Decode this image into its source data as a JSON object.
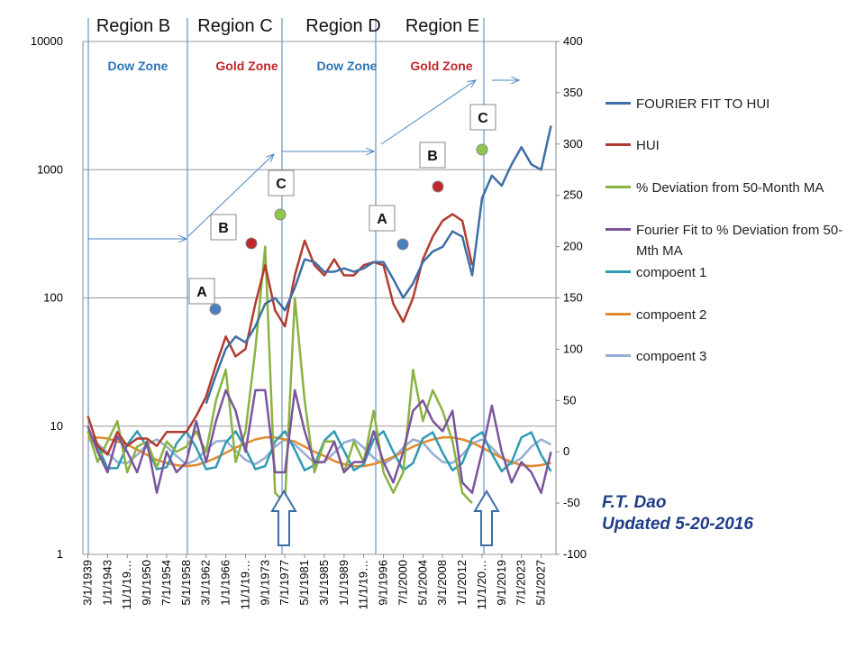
{
  "chart_data": {
    "type": "line",
    "categories": [
      "3/1/1939",
      null,
      "1/1/1943",
      null,
      "11/1/19…",
      null,
      "9/1/1950",
      null,
      "7/1/1954",
      null,
      "5/1/1958",
      null,
      "3/1/1962",
      null,
      "1/1/1966",
      null,
      "11/1/19…",
      null,
      "9/1/1973",
      null,
      "7/1/1977",
      null,
      "5/1/1981",
      null,
      "3/1/1985",
      null,
      "1/1/1989",
      null,
      "11/1/19…",
      null,
      "9/1/1996",
      null,
      "7/1/2000",
      null,
      "5/1/2004",
      null,
      "3/1/2008",
      null,
      "1/1/2012",
      null,
      "11/1/20…",
      null,
      "9/1/2019",
      null,
      "7/1/2023",
      null,
      "5/1/2027",
      null
    ],
    "ylim": [
      1,
      10000
    ],
    "yticks": [
      1,
      10,
      100,
      1000,
      10000
    ],
    "log_y": true,
    "grid": true,
    "y2lim": [
      -100,
      400
    ],
    "y2ticks": [
      -100,
      -50,
      0,
      50,
      100,
      150,
      200,
      250,
      300,
      350,
      400
    ],
    "legend": "right",
    "series": [
      {
        "name": "FOURIER FIT TO HUI",
        "color": "#3d6fa6",
        "values": [
          null,
          null,
          null,
          null,
          null,
          null,
          null,
          null,
          null,
          null,
          null,
          null,
          15,
          25,
          40,
          50,
          45,
          60,
          90,
          100,
          80,
          120,
          200,
          190,
          160,
          160,
          170,
          160,
          170,
          190,
          190,
          140,
          100,
          130,
          190,
          230,
          250,
          330,
          300,
          150,
          600,
          900,
          750,
          1100,
          1500,
          1100,
          1000,
          2200
        ]
      },
      {
        "name": "HUI",
        "color": "#b13c30",
        "values": [
          12,
          7,
          6,
          9,
          7,
          8,
          8,
          7,
          9,
          9,
          9,
          12,
          17,
          30,
          50,
          35,
          40,
          90,
          180,
          80,
          60,
          150,
          280,
          180,
          150,
          200,
          150,
          150,
          180,
          190,
          180,
          90,
          65,
          100,
          200,
          300,
          400,
          450,
          400,
          180,
          null,
          null,
          null,
          null,
          null,
          null,
          null,
          null
        ]
      },
      {
        "name": "% Deviation from 50-Month MA",
        "color": "#8bb243",
        "axis": "y2",
        "values": [
          20,
          -10,
          10,
          30,
          -20,
          5,
          10,
          -15,
          10,
          0,
          5,
          20,
          0,
          50,
          80,
          -10,
          20,
          100,
          200,
          -40,
          -50,
          150,
          50,
          -20,
          10,
          10,
          -20,
          10,
          -10,
          40,
          -20,
          -40,
          -20,
          80,
          30,
          60,
          40,
          10,
          -40,
          -50,
          null,
          null,
          null,
          null,
          null,
          null,
          null,
          null
        ]
      },
      {
        "name": "Fourier Fit to % Deviation from 50-Mth MA",
        "color": "#7a559c",
        "axis": "y2",
        "values": [
          25,
          0,
          -20,
          15,
          0,
          -20,
          10,
          -40,
          0,
          -20,
          -10,
          30,
          -10,
          30,
          60,
          40,
          0,
          60,
          60,
          -20,
          -20,
          60,
          20,
          -10,
          -10,
          10,
          -20,
          -10,
          -10,
          20,
          -10,
          -30,
          0,
          40,
          50,
          30,
          20,
          40,
          -30,
          -40,
          0,
          45,
          0,
          -30,
          -10,
          -20,
          -40,
          0
        ]
      },
      {
        "name": "compoent 1",
        "color": "#2e9bb3",
        "axis": "y2",
        "values": [
          20,
          6,
          -16,
          -16,
          7,
          20,
          5,
          -17,
          -15,
          8,
          20,
          4,
          -17,
          -15,
          9,
          20,
          3,
          -17,
          -14,
          10,
          20,
          2,
          -18,
          -13,
          11,
          20,
          1,
          -18,
          -12,
          12,
          20,
          0,
          -18,
          -11,
          13,
          19,
          -1,
          -18,
          -11,
          13,
          19,
          -2,
          -19,
          -10,
          14,
          19,
          -3,
          -19
        ]
      },
      {
        "name": "compoent 2",
        "color": "#e4892c",
        "axis": "y2",
        "values": [
          13,
          14,
          13,
          10,
          7,
          2,
          -3,
          -8,
          -11,
          -13,
          -14,
          -13,
          -10,
          -6,
          -1,
          4,
          8,
          12,
          14,
          14,
          12,
          10,
          5,
          0,
          -4,
          -9,
          -12,
          -14,
          -14,
          -12,
          -9,
          -5,
          0,
          5,
          9,
          12,
          14,
          14,
          12,
          9,
          4,
          -1,
          -6,
          -10,
          -13,
          -14,
          -13,
          -11
        ]
      },
      {
        "name": "compoent 3",
        "color": "#95aed3",
        "axis": "y2",
        "values": [
          12,
          8,
          -1,
          -10,
          -11,
          -3,
          7,
          12,
          5,
          -4,
          -12,
          -8,
          2,
          10,
          11,
          1,
          -8,
          -12,
          -6,
          5,
          12,
          7,
          -2,
          -11,
          -10,
          -1,
          9,
          12,
          4,
          -6,
          -12,
          -6,
          4,
          12,
          9,
          -2,
          -10,
          -11,
          -3,
          8,
          12,
          4,
          -6,
          -12,
          -6,
          5,
          12,
          7
        ]
      }
    ],
    "annotations": [
      "Region B",
      "Region C",
      "Region D",
      "Region E",
      "Dow Zone",
      "Gold Zone",
      "Dow Zone",
      "Gold Zone",
      "A",
      "B",
      "C",
      "A",
      "B",
      "C",
      "F.T. Dao",
      "Updated 5-20-2016"
    ]
  }
}
